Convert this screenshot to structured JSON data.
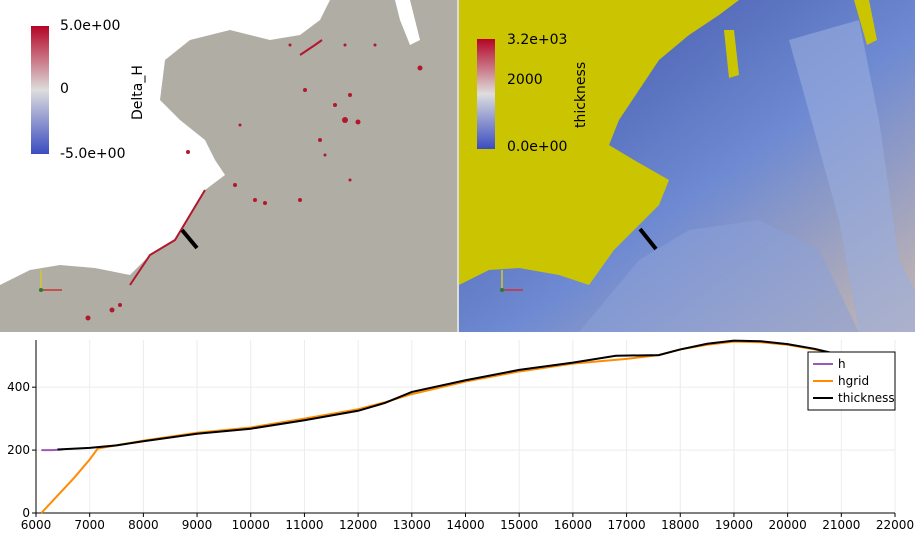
{
  "left_view": {
    "colorbar": {
      "title": "Delta_H",
      "max_label": "5.0e+00",
      "mid_label": "0",
      "min_label": "-5.0e+00",
      "colors": [
        "#b40426",
        "#dddddd",
        "#3b4cc0"
      ]
    },
    "land_color": "#b0ada4",
    "coast_color": "#b2182b"
  },
  "right_view": {
    "colorbar": {
      "title": "thickness",
      "max_label": "3.2e+03",
      "mid_label": "2000",
      "min_label": "0.0e+00",
      "colors": [
        "#b40426",
        "#dddddd",
        "#3b4cc0"
      ]
    },
    "background_color": "#cbc400",
    "ice_color": "#3a4ca0"
  },
  "chart_data": {
    "type": "line",
    "xlim": [
      6000,
      22000
    ],
    "ylim": [
      0,
      550
    ],
    "x_ticks": [
      "6000",
      "7000",
      "8000",
      "9000",
      "10000",
      "11000",
      "12000",
      "13000",
      "14000",
      "15000",
      "16000",
      "17000",
      "18000",
      "19000",
      "20000",
      "21000",
      "22000"
    ],
    "y_ticks": [
      "0",
      "200",
      "400"
    ],
    "grid": true,
    "legend_position": "top-right",
    "series": [
      {
        "name": "h",
        "color": "#9b59b6",
        "x": [
          6100,
          6300,
          6500
        ],
        "y": [
          200,
          200,
          202
        ]
      },
      {
        "name": "hgrid",
        "color": "#ff8c00",
        "x": [
          6100,
          6400,
          6700,
          7000,
          7150,
          8000,
          9000,
          10000,
          11000,
          12000,
          12500,
          13000,
          14000,
          15000,
          16000,
          17000,
          17600,
          18000,
          18500,
          19000,
          19500,
          20000,
          20500,
          20900
        ],
        "y": [
          0,
          55,
          110,
          170,
          205,
          230,
          255,
          272,
          300,
          330,
          352,
          378,
          418,
          450,
          475,
          490,
          502,
          520,
          535,
          545,
          543,
          535,
          520,
          505
        ]
      },
      {
        "name": "thickness",
        "color": "#000000",
        "x": [
          6400,
          7000,
          7500,
          8000,
          9000,
          10000,
          11000,
          12000,
          12500,
          13000,
          14000,
          15000,
          16000,
          16800,
          17600,
          18000,
          18500,
          19000,
          19500,
          20000,
          20500,
          20900
        ],
        "y": [
          202,
          207,
          215,
          228,
          252,
          268,
          295,
          325,
          350,
          385,
          422,
          455,
          478,
          500,
          502,
          520,
          538,
          548,
          546,
          537,
          522,
          506
        ]
      }
    ]
  }
}
